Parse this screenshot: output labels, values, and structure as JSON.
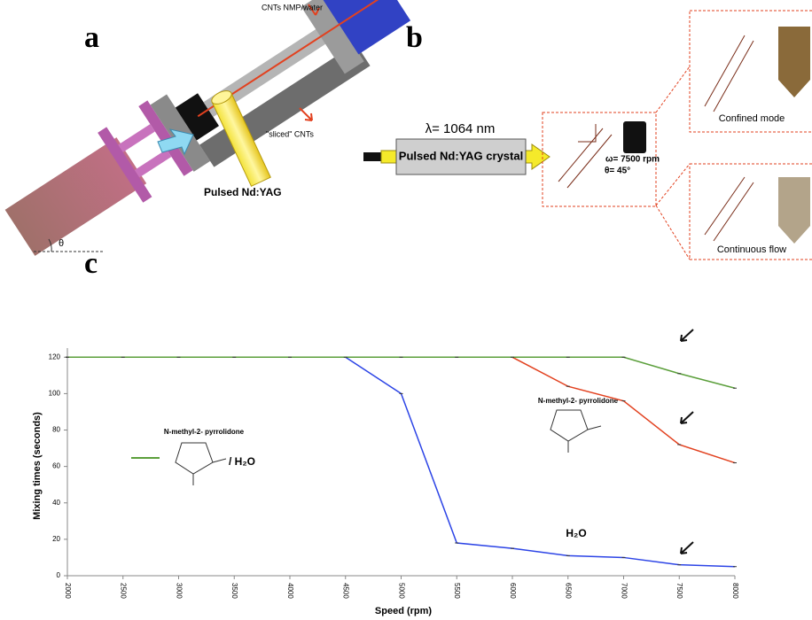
{
  "panel_a": {
    "label": "a",
    "inlet_label": "CNTs NMP/water",
    "outlet_label": "\"sliced\" CNTs",
    "laser_label": "Pulsed Nd:YAG",
    "angle_label": "θ"
  },
  "panel_b": {
    "label": "b",
    "wavelength_label": "λ= 1064 nm",
    "laser_label": "Pulsed Nd:YAG crystal",
    "speed_label": "ω= 7500 rpm",
    "angle_label": "θ= 45°",
    "confined_label": "Confined mode",
    "continuous_label": "Continuous flow"
  },
  "chart_data": {
    "type": "line",
    "panel_label": "c",
    "x_label": "Speed (rpm)",
    "y_label": "Mixing times (seconds)",
    "x": [
      2000,
      2500,
      3000,
      3500,
      4000,
      4500,
      5000,
      5500,
      6000,
      6500,
      7000,
      7500,
      8000
    ],
    "series": [
      {
        "color": "#e2411f",
        "values": [
          120,
          120,
          120,
          120,
          120,
          120,
          120,
          120,
          120,
          104,
          96,
          72,
          62
        ]
      },
      {
        "color": "#2c44e6",
        "values": [
          120,
          120,
          120,
          120,
          120,
          120,
          100,
          18,
          15,
          11,
          10,
          6,
          5
        ]
      },
      {
        "color": "#5b9f3b",
        "values": [
          120,
          120,
          120,
          120,
          120,
          120,
          120,
          120,
          120,
          120,
          120,
          111,
          103
        ]
      }
    ],
    "xlim": [
      2000,
      8000
    ],
    "xticks": [
      2000,
      2500,
      3000,
      3500,
      4000,
      4500,
      5000,
      5500,
      6000,
      6500,
      7000,
      7500,
      8000
    ],
    "ylim": [
      0,
      125
    ],
    "yticks": [
      0,
      20,
      40,
      60,
      80,
      100,
      120
    ],
    "grid": false,
    "annotations": [
      "N-methyl-2- pyrrolidone",
      "/ H₂O",
      "N-methyl-2- pyrrolidone",
      "H₂O"
    ]
  }
}
